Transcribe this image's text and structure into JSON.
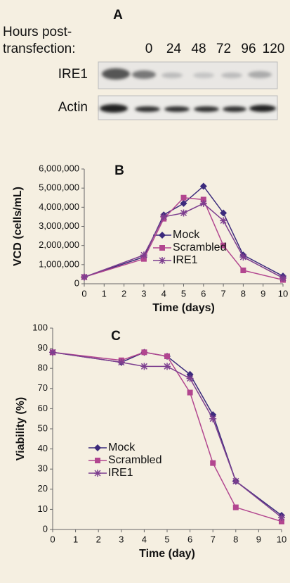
{
  "panel_a": {
    "label": "A",
    "row_header": [
      "Hours post-",
      "transfection:"
    ],
    "hours": [
      "0",
      "24",
      "48",
      "72",
      "96",
      "120"
    ],
    "rows": [
      "IRE1",
      "Actin"
    ]
  },
  "chart_data": [
    {
      "type": "line",
      "title": "B",
      "x_label": "Time (days)",
      "y_label": "VCD (cells/mL)",
      "x": [
        0,
        3,
        4,
        5,
        6,
        7,
        8,
        10
      ],
      "xlim": [
        0,
        10
      ],
      "xticks": [
        0,
        1,
        2,
        3,
        4,
        5,
        6,
        7,
        8,
        9,
        10
      ],
      "ylim": [
        0,
        6000000
      ],
      "yticks": [
        0,
        {
          "value": 1000000,
          "label": "1,000,000"
        },
        {
          "value": 2000000,
          "label": "2,000,000"
        },
        {
          "value": 3000000,
          "label": "3,000,000"
        },
        {
          "value": 4000000,
          "label": "4,000,000"
        },
        {
          "value": 5000000,
          "label": "5,000,000"
        },
        {
          "value": 6000000,
          "label": "6,000,000"
        }
      ],
      "grid": false,
      "legend": "center",
      "series": [
        {
          "name": "Mock",
          "color": "#3b2a7c",
          "marker": "diamond",
          "values": [
            350000,
            1400000,
            3600000,
            4200000,
            5100000,
            3700000,
            1500000,
            400000
          ]
        },
        {
          "name": "Scrambled",
          "color": "#b2468f",
          "marker": "square",
          "values": [
            350000,
            1300000,
            3400000,
            4500000,
            4400000,
            2000000,
            700000,
            200000
          ]
        },
        {
          "name": "IRE1",
          "color": "#7d3f8f",
          "marker": "asterisk",
          "values": [
            350000,
            1500000,
            3500000,
            3700000,
            4200000,
            3300000,
            1400000,
            300000
          ]
        }
      ]
    },
    {
      "type": "line",
      "title": "C",
      "x_label": "Time (day)",
      "y_label": "Viability (%)",
      "x": [
        0,
        3,
        4,
        5,
        6,
        7,
        8,
        10
      ],
      "xlim": [
        0,
        10
      ],
      "xticks": [
        0,
        1,
        2,
        3,
        4,
        5,
        6,
        7,
        8,
        9,
        10
      ],
      "ylim": [
        0,
        100
      ],
      "yticks": [
        0,
        10,
        20,
        30,
        40,
        50,
        60,
        70,
        80,
        90,
        100
      ],
      "grid": false,
      "legend": "center left",
      "series": [
        {
          "name": "Mock",
          "color": "#3b2a7c",
          "marker": "diamond",
          "values": [
            88,
            83,
            88,
            86,
            77,
            57,
            24,
            7
          ]
        },
        {
          "name": "Scrambled",
          "color": "#b2468f",
          "marker": "square",
          "values": [
            88,
            84,
            88,
            86,
            68,
            33,
            11,
            4
          ]
        },
        {
          "name": "IRE1",
          "color": "#7d3f8f",
          "marker": "asterisk",
          "values": [
            88,
            83,
            81,
            81,
            75,
            55,
            24,
            6
          ]
        }
      ]
    }
  ]
}
